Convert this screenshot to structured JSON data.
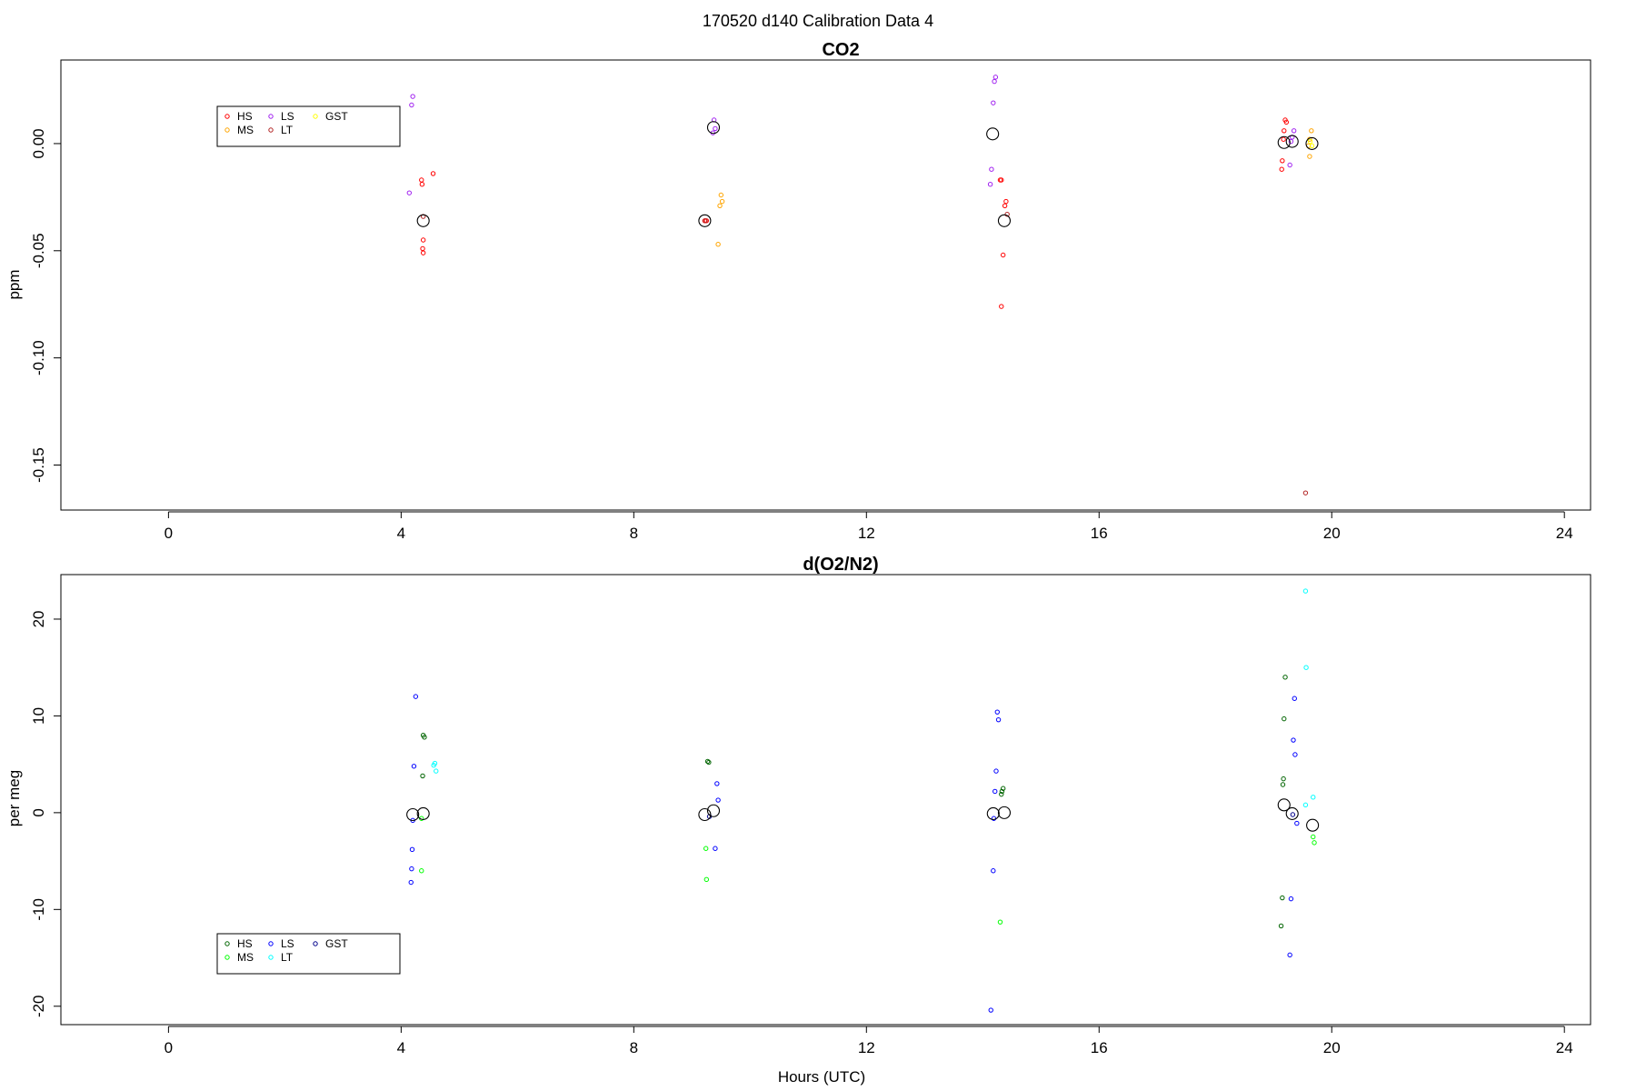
{
  "figure": {
    "title": "170520   d140   Calibration Data 4"
  },
  "chart_data": [
    {
      "type": "scatter",
      "title": "CO2",
      "xlabel": "",
      "ylabel": "ppm",
      "xlim": [
        -1.85,
        24.45
      ],
      "ylim": [
        -0.171,
        0.039
      ],
      "xticks": [
        "0",
        "4",
        "8",
        "12",
        "16",
        "20",
        "24"
      ],
      "xtick_values": [
        0,
        4,
        8,
        12,
        16,
        20,
        24
      ],
      "yticks": [
        "-0.15",
        "-0.10",
        "-0.05",
        "0.00"
      ],
      "ytick_values": [
        -0.15,
        -0.1,
        -0.05,
        0.0
      ],
      "legend_position": "top-left",
      "series": [
        {
          "name": "HS",
          "color": "#ff0000",
          "points": [
            [
              4.35,
              -0.017
            ],
            [
              4.36,
              -0.019
            ],
            [
              4.55,
              -0.014
            ],
            [
              4.38,
              -0.045
            ],
            [
              4.37,
              -0.049
            ],
            [
              4.38,
              -0.051
            ],
            [
              9.22,
              -0.036
            ],
            [
              9.25,
              -0.036
            ],
            [
              14.3,
              -0.017
            ],
            [
              14.32,
              -0.017
            ],
            [
              14.4,
              -0.027
            ],
            [
              14.38,
              -0.029
            ],
            [
              14.35,
              -0.052
            ],
            [
              14.32,
              -0.076
            ],
            [
              19.2,
              0.011
            ],
            [
              19.22,
              0.01
            ],
            [
              19.18,
              0.006
            ],
            [
              19.17,
              0.002
            ],
            [
              19.15,
              -0.008
            ],
            [
              19.14,
              -0.012
            ]
          ]
        },
        {
          "name": "MS",
          "color": "#ffa500",
          "points": [
            [
              9.5,
              -0.024
            ],
            [
              9.52,
              -0.027
            ],
            [
              9.48,
              -0.029
            ],
            [
              9.45,
              -0.047
            ],
            [
              19.65,
              0.006
            ],
            [
              19.62,
              0.002
            ],
            [
              19.6,
              -0.001
            ],
            [
              19.62,
              -0.006
            ]
          ]
        },
        {
          "name": "LS",
          "color": "#a020f0",
          "points": [
            [
              4.2,
              0.022
            ],
            [
              4.18,
              0.018
            ],
            [
              4.14,
              -0.023
            ],
            [
              9.38,
              0.011
            ],
            [
              9.4,
              0.007
            ],
            [
              9.36,
              0.005
            ],
            [
              14.22,
              0.031
            ],
            [
              14.2,
              0.029
            ],
            [
              14.18,
              0.019
            ],
            [
              14.15,
              -0.012
            ],
            [
              14.13,
              -0.019
            ],
            [
              19.35,
              0.006
            ],
            [
              19.32,
              0.003
            ],
            [
              19.3,
              0.001
            ],
            [
              19.28,
              -0.01
            ]
          ]
        },
        {
          "name": "LT",
          "color": "#b22222",
          "points": [
            [
              4.38,
              -0.034
            ],
            [
              9.23,
              -0.036
            ],
            [
              14.42,
              -0.033
            ],
            [
              19.55,
              -0.163
            ]
          ]
        },
        {
          "name": "GST",
          "color": "#ffff00",
          "points": [
            [
              19.63,
              0.001
            ],
            [
              19.66,
              -0.001
            ]
          ]
        }
      ],
      "means": [
        [
          4.38,
          -0.036
        ],
        [
          9.22,
          -0.036
        ],
        [
          9.37,
          0.0075
        ],
        [
          14.17,
          0.0045
        ],
        [
          14.37,
          -0.036
        ],
        [
          19.18,
          0.0005
        ],
        [
          19.32,
          0.001
        ],
        [
          19.66,
          0.0
        ]
      ]
    },
    {
      "type": "scatter",
      "title": "d(O2/N2)",
      "xlabel": "Hours (UTC)",
      "ylabel": "per meg",
      "xlim": [
        -1.85,
        24.45
      ],
      "ylim": [
        -21.9,
        24.6
      ],
      "xticks": [
        "0",
        "4",
        "8",
        "12",
        "16",
        "20",
        "24"
      ],
      "xtick_values": [
        0,
        4,
        8,
        12,
        16,
        20,
        24
      ],
      "yticks": [
        "-20",
        "-10",
        "0",
        "10",
        "20"
      ],
      "ytick_values": [
        -20,
        -10,
        0,
        10,
        20
      ],
      "legend_position": "bottom-left",
      "series": [
        {
          "name": "HS",
          "color": "#006400",
          "points": [
            [
              4.38,
              8.0
            ],
            [
              4.4,
              7.8
            ],
            [
              4.37,
              3.8
            ],
            [
              9.27,
              5.3
            ],
            [
              9.29,
              5.2
            ],
            [
              14.35,
              2.5
            ],
            [
              14.33,
              2.2
            ],
            [
              14.32,
              1.9
            ],
            [
              19.2,
              14.0
            ],
            [
              19.18,
              9.7
            ],
            [
              19.17,
              3.5
            ],
            [
              19.16,
              2.9
            ],
            [
              19.15,
              -8.8
            ],
            [
              19.13,
              -11.7
            ]
          ]
        },
        {
          "name": "MS",
          "color": "#00ff00",
          "points": [
            [
              4.35,
              -0.6
            ],
            [
              4.35,
              -6.0
            ],
            [
              9.24,
              -3.7
            ],
            [
              9.25,
              -6.9
            ],
            [
              14.3,
              -11.3
            ],
            [
              19.68,
              -2.5
            ],
            [
              19.7,
              -3.1
            ]
          ]
        },
        {
          "name": "LS",
          "color": "#0000ff",
          "points": [
            [
              4.25,
              12.0
            ],
            [
              4.22,
              4.8
            ],
            [
              4.2,
              -0.8
            ],
            [
              4.19,
              -3.8
            ],
            [
              4.18,
              -5.8
            ],
            [
              4.17,
              -7.2
            ],
            [
              9.43,
              3.0
            ],
            [
              9.45,
              1.3
            ],
            [
              9.4,
              -3.7
            ],
            [
              14.25,
              10.4
            ],
            [
              14.27,
              9.6
            ],
            [
              14.23,
              4.3
            ],
            [
              14.21,
              2.2
            ],
            [
              14.19,
              -0.6
            ],
            [
              14.18,
              -6.0
            ],
            [
              14.14,
              -20.4
            ],
            [
              19.36,
              11.8
            ],
            [
              19.34,
              7.5
            ],
            [
              19.37,
              6.0
            ],
            [
              19.4,
              -1.1
            ],
            [
              19.3,
              -8.9
            ],
            [
              19.28,
              -14.7
            ]
          ]
        },
        {
          "name": "LT",
          "color": "#00ffff",
          "points": [
            [
              4.58,
              5.1
            ],
            [
              4.6,
              4.3
            ],
            [
              4.56,
              4.9
            ],
            [
              19.55,
              22.9
            ],
            [
              19.56,
              15.0
            ],
            [
              19.68,
              1.6
            ],
            [
              19.55,
              0.8
            ]
          ]
        },
        {
          "name": "GST",
          "color": "#00008b",
          "points": [
            [
              9.3,
              -0.4
            ],
            [
              19.33,
              -0.2
            ]
          ]
        }
      ],
      "means": [
        [
          4.2,
          -0.2
        ],
        [
          4.38,
          -0.1
        ],
        [
          9.22,
          -0.2
        ],
        [
          9.37,
          0.2
        ],
        [
          14.18,
          -0.1
        ],
        [
          14.37,
          0.0
        ],
        [
          19.18,
          0.8
        ],
        [
          19.32,
          -0.1
        ],
        [
          19.67,
          -1.3
        ]
      ]
    }
  ]
}
